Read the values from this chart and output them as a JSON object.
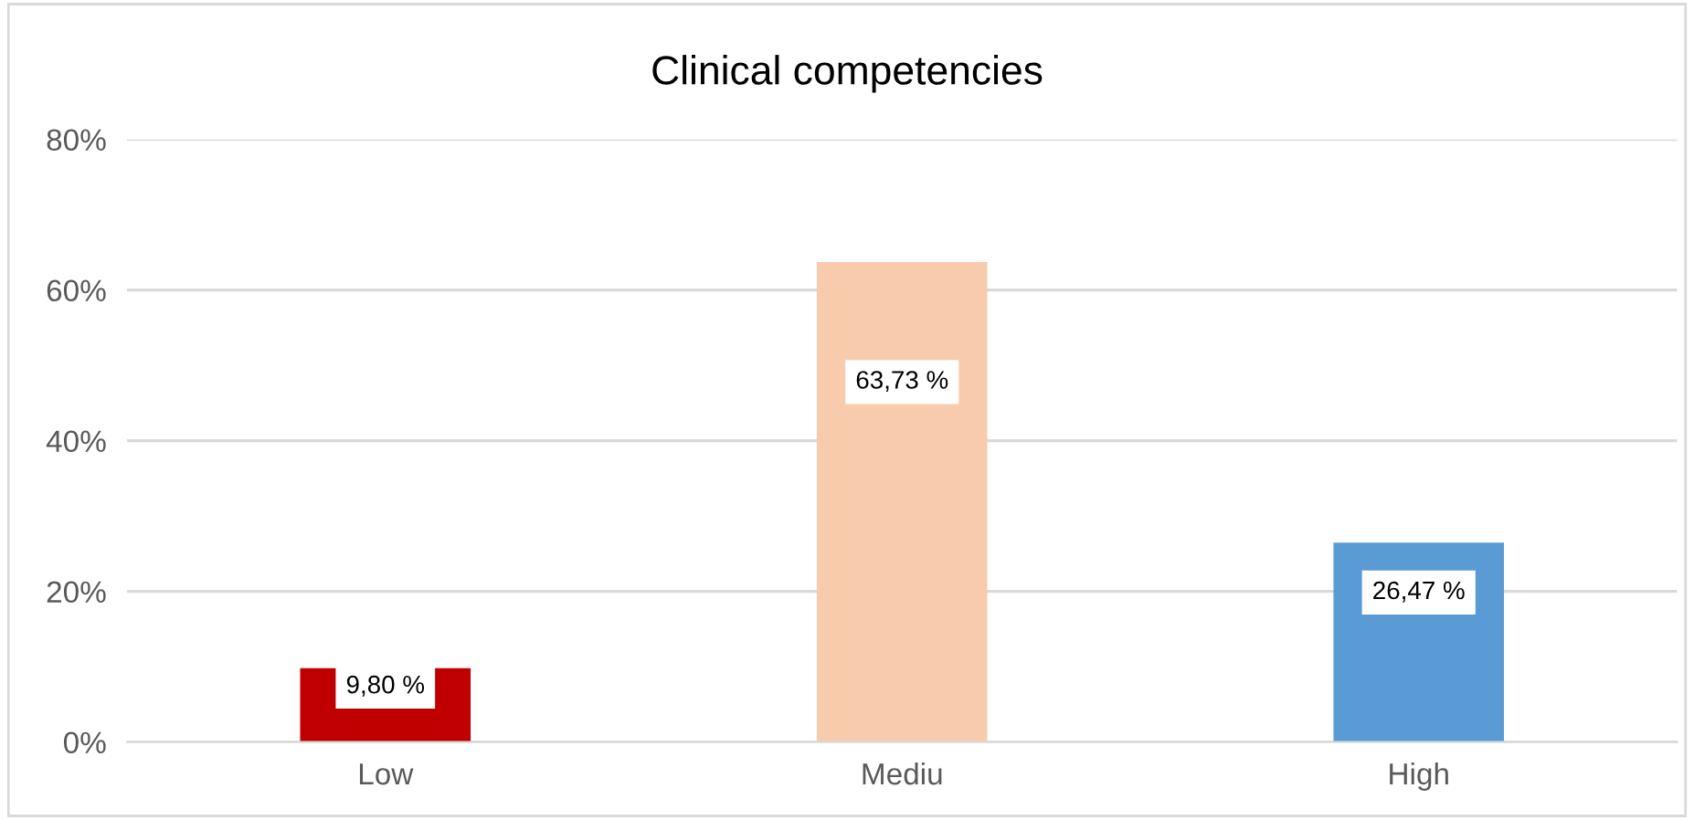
{
  "chart_data": {
    "type": "bar",
    "title": "Clinical competencies",
    "categories": [
      "Low",
      "Mediu",
      "High"
    ],
    "values": [
      9.8,
      63.73,
      26.47
    ],
    "colors": [
      "#c00000",
      "#f8cbad",
      "#5b9bd5"
    ],
    "value_labels": [
      "9,80 %",
      "63,73 %",
      "26,47 %"
    ],
    "ylim": [
      0,
      80
    ],
    "yticks": [
      {
        "value": 0,
        "label": "0%"
      },
      {
        "value": 20,
        "label": "20%"
      },
      {
        "value": 40,
        "label": "40%"
      },
      {
        "value": 60,
        "label": "60%"
      },
      {
        "value": 80,
        "label": "80%"
      }
    ],
    "grid": "y"
  }
}
